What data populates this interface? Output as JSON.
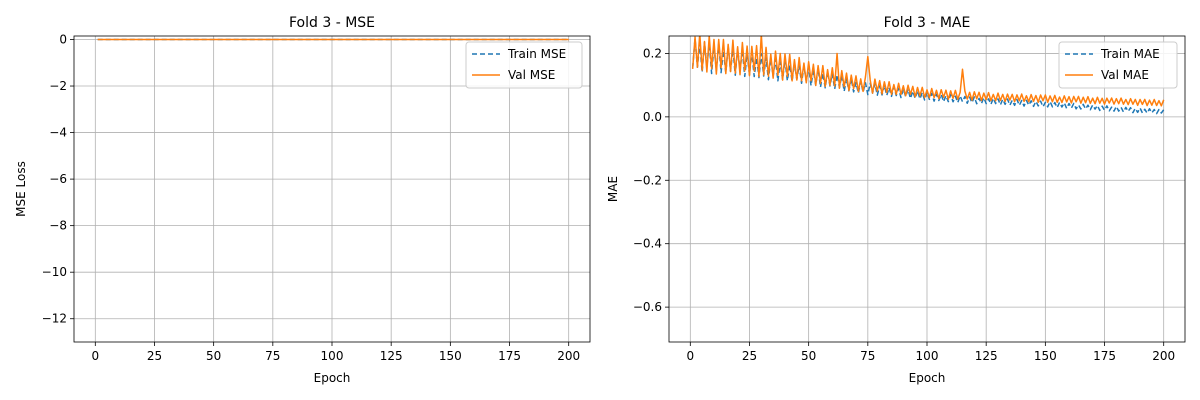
{
  "chart_data": [
    {
      "type": "line",
      "title": "Fold 3 - MSE",
      "xlabel": "Epoch",
      "ylabel": "MSE Loss",
      "xlim": [
        -9,
        209
      ],
      "ylim": [
        -13.0,
        0.15
      ],
      "xticks": [
        0,
        25,
        50,
        75,
        100,
        125,
        150,
        175,
        200
      ],
      "yticks": [
        0,
        -2,
        -4,
        -6,
        -8,
        -10,
        -12
      ],
      "ytick_labels": [
        "0",
        "−2",
        "−4",
        "−6",
        "−8",
        "−10",
        "−12"
      ],
      "grid": true,
      "legend": "top-right",
      "series": [
        {
          "name": "Train MSE",
          "style": "dashed",
          "color": "#1f77b4",
          "x": [
            1,
            200
          ],
          "values": [
            0.0,
            0.0
          ]
        },
        {
          "name": "Val MSE",
          "style": "solid",
          "color": "#ff7f0e",
          "x": [
            1,
            200
          ],
          "values": [
            0.0,
            0.0
          ]
        }
      ]
    },
    {
      "type": "line",
      "title": "Fold 3 - MAE",
      "xlabel": "Epoch",
      "ylabel": "MAE",
      "xlim": [
        -9,
        209
      ],
      "ylim": [
        -0.71,
        0.255
      ],
      "xticks": [
        0,
        25,
        50,
        75,
        100,
        125,
        150,
        175,
        200
      ],
      "yticks": [
        0.2,
        0.0,
        -0.2,
        -0.4,
        -0.6
      ],
      "ytick_labels": [
        "0.2",
        "0.0",
        "−0.2",
        "−0.4",
        "−0.6"
      ],
      "grid": true,
      "legend": "top-right",
      "series": [
        {
          "name": "Train MAE",
          "style": "dashed",
          "color": "#1f77b4",
          "x": [
            1,
            5,
            10,
            15,
            20,
            25,
            30,
            35,
            40,
            45,
            50,
            55,
            60,
            65,
            70,
            75,
            80,
            85,
            90,
            95,
            100,
            105,
            110,
            115,
            120,
            125,
            130,
            135,
            140,
            145,
            150,
            155,
            160,
            165,
            170,
            175,
            180,
            185,
            190,
            195,
            200
          ],
          "values": [
            0.2,
            0.19,
            0.185,
            0.18,
            0.175,
            0.165,
            0.16,
            0.15,
            0.145,
            0.14,
            0.13,
            0.12,
            0.115,
            0.105,
            0.095,
            0.09,
            0.085,
            0.08,
            0.075,
            0.07,
            0.065,
            0.06,
            0.058,
            0.055,
            0.052,
            0.05,
            0.048,
            0.046,
            0.044,
            0.042,
            0.04,
            0.038,
            0.035,
            0.032,
            0.03,
            0.027,
            0.025,
            0.022,
            0.02,
            0.018,
            0.016
          ],
          "amplitude": [
            0.05,
            0.05,
            0.05,
            0.045,
            0.045,
            0.04,
            0.04,
            0.035,
            0.035,
            0.03,
            0.03,
            0.03,
            0.025,
            0.025,
            0.02,
            0.02,
            0.018,
            0.016,
            0.015,
            0.014,
            0.013,
            0.012,
            0.012,
            0.011,
            0.011,
            0.01,
            0.01,
            0.01,
            0.01,
            0.009,
            0.009,
            0.009,
            0.009,
            0.008,
            0.008,
            0.008,
            0.008,
            0.008,
            0.008,
            0.007,
            0.007
          ]
        },
        {
          "name": "Val MAE",
          "style": "solid",
          "color": "#ff7f0e",
          "x": [
            1,
            5,
            10,
            15,
            20,
            25,
            30,
            35,
            40,
            45,
            50,
            55,
            60,
            65,
            70,
            75,
            80,
            85,
            90,
            95,
            100,
            105,
            110,
            115,
            120,
            125,
            130,
            135,
            140,
            145,
            150,
            155,
            160,
            165,
            170,
            175,
            180,
            185,
            190,
            195,
            200
          ],
          "values": [
            0.21,
            0.2,
            0.195,
            0.19,
            0.185,
            0.18,
            0.175,
            0.165,
            0.16,
            0.15,
            0.14,
            0.13,
            0.125,
            0.115,
            0.105,
            0.1,
            0.095,
            0.09,
            0.085,
            0.08,
            0.075,
            0.072,
            0.07,
            0.068,
            0.066,
            0.064,
            0.062,
            0.06,
            0.06,
            0.058,
            0.058,
            0.056,
            0.055,
            0.054,
            0.052,
            0.05,
            0.05,
            0.048,
            0.046,
            0.045,
            0.044
          ],
          "amplitude": [
            0.06,
            0.06,
            0.06,
            0.055,
            0.055,
            0.05,
            0.05,
            0.045,
            0.045,
            0.04,
            0.035,
            0.035,
            0.03,
            0.03,
            0.025,
            0.025,
            0.022,
            0.02,
            0.018,
            0.017,
            0.016,
            0.015,
            0.015,
            0.014,
            0.014,
            0.013,
            0.013,
            0.012,
            0.012,
            0.012,
            0.012,
            0.011,
            0.011,
            0.011,
            0.011,
            0.01,
            0.01,
            0.01,
            0.01,
            0.01,
            0.01
          ],
          "spikes": [
            [
              30,
              0.26
            ],
            [
              62,
              0.2
            ],
            [
              75,
              0.19
            ],
            [
              115,
              0.15
            ]
          ]
        }
      ]
    }
  ]
}
